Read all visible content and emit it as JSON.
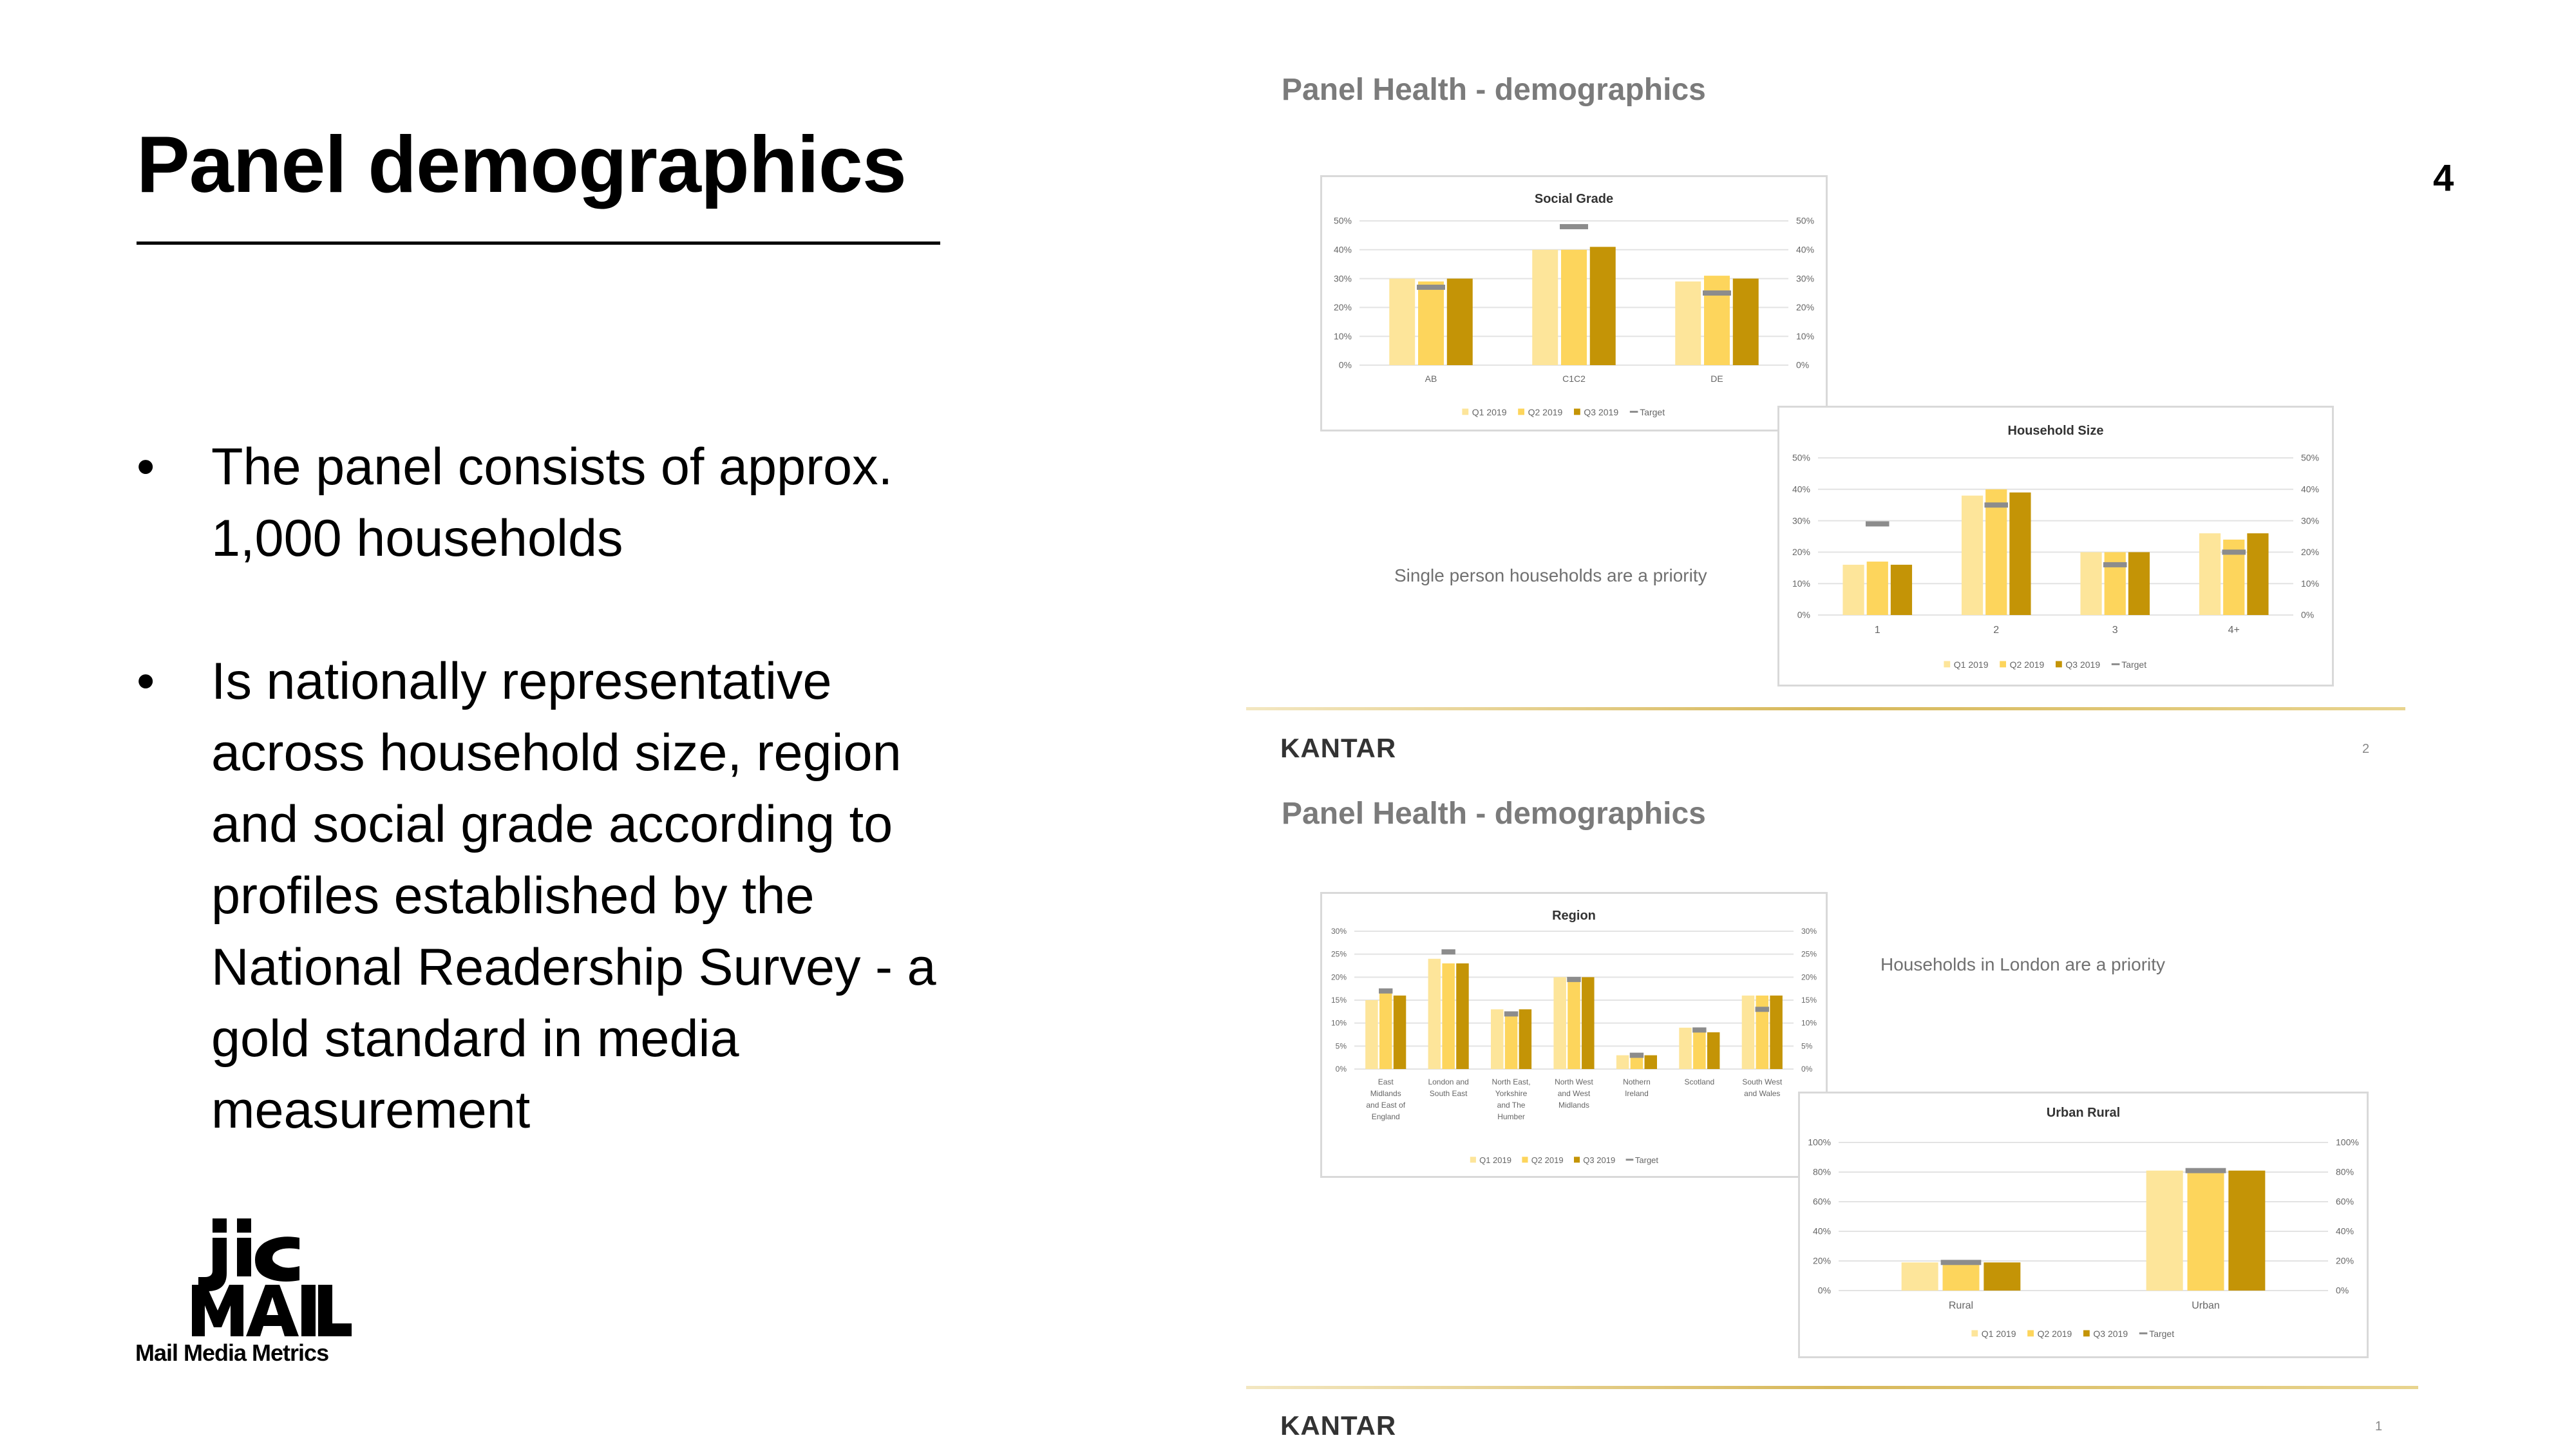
{
  "page": {
    "title": "Panel demographics",
    "page_number": "4"
  },
  "bullets": [
    "The panel consists of approx. 1,000 households",
    "Is nationally representative across household size, region and social grade according to profiles established by the National Readership Survey - a gold standard in media measurement"
  ],
  "bullet_symbol": "•",
  "logo": {
    "mark": "JIC MAIL",
    "subtitle": "Mail Media Metrics"
  },
  "slides": [
    {
      "heading": "Panel Health - demographics",
      "note": "Single person households are a priority",
      "brand": "KANTAR",
      "number": "2"
    },
    {
      "heading": "Panel Health - demographics",
      "note": "Households in London are a priority",
      "brand": "KANTAR",
      "number": "1"
    }
  ],
  "colors": {
    "q1": "#fde59a",
    "q2": "#fdd55c",
    "q3": "#c49406",
    "target": "#8c8c8c",
    "gold_line": "#d7b85a"
  },
  "chart_data": [
    {
      "id": "social",
      "type": "bar",
      "title": "Social Grade",
      "categories": [
        "AB",
        "C1C2",
        "DE"
      ],
      "series": [
        {
          "name": "Q1 2019",
          "values": [
            30,
            40,
            29
          ]
        },
        {
          "name": "Q2 2019",
          "values": [
            29,
            40,
            31
          ]
        },
        {
          "name": "Q3 2019",
          "values": [
            30,
            41,
            30
          ]
        }
      ],
      "target": {
        "name": "Target",
        "values": [
          27,
          48,
          25
        ]
      },
      "yticks": [
        "0%",
        "10%",
        "20%",
        "30%",
        "40%",
        "50%"
      ],
      "ylim": [
        0,
        50
      ],
      "secondary_axis": true,
      "legend": "bottom"
    },
    {
      "id": "household",
      "type": "bar",
      "title": "Household Size",
      "categories": [
        "1",
        "2",
        "3",
        "4+"
      ],
      "series": [
        {
          "name": "Q1 2019",
          "values": [
            16,
            38,
            20,
            26
          ]
        },
        {
          "name": "Q2 2019",
          "values": [
            17,
            40,
            20,
            24
          ]
        },
        {
          "name": "Q3 2019",
          "values": [
            16,
            39,
            20,
            26
          ]
        }
      ],
      "target": {
        "name": "Target",
        "values": [
          29,
          35,
          16,
          20
        ]
      },
      "yticks": [
        "0%",
        "10%",
        "20%",
        "30%",
        "40%",
        "50%"
      ],
      "ylim": [
        0,
        50
      ],
      "secondary_axis": true,
      "legend": "bottom"
    },
    {
      "id": "region",
      "type": "bar",
      "title": "Region",
      "categories": [
        [
          "East",
          "Midlands",
          "and East of",
          "England"
        ],
        [
          "London and",
          "South East"
        ],
        [
          "North East,",
          "Yorkshire",
          "and The",
          "Humber"
        ],
        [
          "North West",
          "and West",
          "Midlands"
        ],
        [
          "Nothern",
          "Ireland"
        ],
        [
          "Scotland"
        ],
        [
          "South West",
          "and Wales"
        ]
      ],
      "series": [
        {
          "name": "Q1 2019",
          "values": [
            15,
            24,
            13,
            20,
            3,
            9,
            16
          ]
        },
        {
          "name": "Q2 2019",
          "values": [
            17,
            23,
            12,
            20,
            3,
            9,
            16
          ]
        },
        {
          "name": "Q3 2019",
          "values": [
            16,
            23,
            13,
            20,
            3,
            8,
            16
          ]
        }
      ],
      "target": {
        "name": "Target",
        "values": [
          17,
          25.5,
          12,
          19.5,
          3,
          8.5,
          13
        ]
      },
      "yticks": [
        "0%",
        "5%",
        "10%",
        "15%",
        "20%",
        "25%",
        "30%"
      ],
      "ylim": [
        0,
        30
      ],
      "secondary_axis": true,
      "legend": "bottom"
    },
    {
      "id": "urban",
      "type": "bar",
      "title": "Urban Rural",
      "categories": [
        "Rural",
        "Urban"
      ],
      "series": [
        {
          "name": "Q1 2019",
          "values": [
            19,
            81
          ]
        },
        {
          "name": "Q2 2019",
          "values": [
            19,
            81
          ]
        },
        {
          "name": "Q3 2019",
          "values": [
            19,
            81
          ]
        }
      ],
      "target": {
        "name": "Target",
        "values": [
          19,
          81
        ]
      },
      "yticks": [
        "0%",
        "20%",
        "40%",
        "60%",
        "80%",
        "100%"
      ],
      "ylim": [
        0,
        100
      ],
      "secondary_axis": true,
      "legend": "bottom"
    }
  ]
}
